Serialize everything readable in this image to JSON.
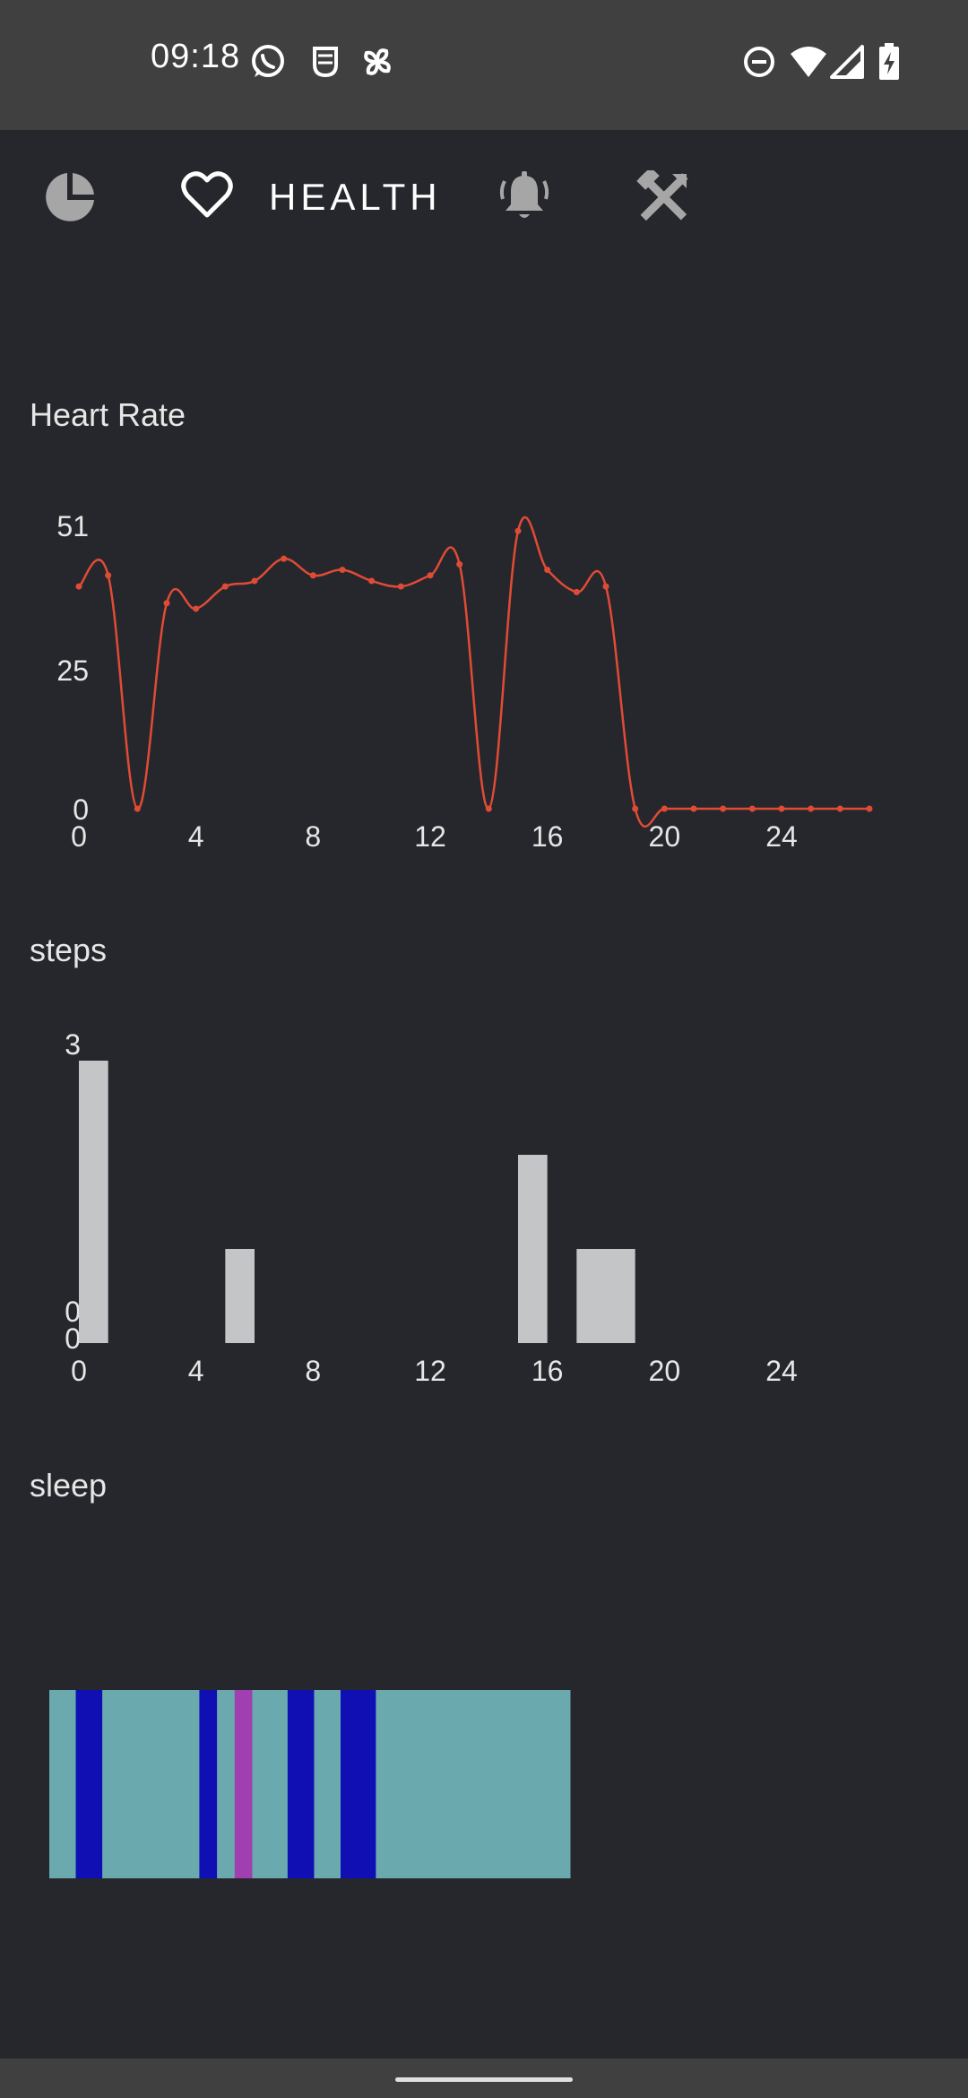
{
  "status_bar": {
    "time": "09:18",
    "notification_icons": [
      "whatsapp-icon",
      "mask-icon",
      "pinwheel-icon"
    ],
    "system_icons": [
      "dnd-icon",
      "wifi-icon",
      "signal-icon",
      "battery-charging-icon"
    ]
  },
  "nav": {
    "items": [
      {
        "name": "dashboard-tab",
        "icon": "pie-chart-icon"
      },
      {
        "name": "health-tab",
        "icon": "heart-icon",
        "label": "HEALTH",
        "active": true
      },
      {
        "name": "alerts-tab",
        "icon": "bell-icon"
      },
      {
        "name": "tools-tab",
        "icon": "tools-icon"
      }
    ]
  },
  "colors": {
    "background": "#26272c",
    "line": "#e04b36",
    "bar": "#c4c5c7",
    "light_sleep": "#6aa9ae",
    "deep_sleep": "#0f0fb3",
    "rem_sleep": "#a040b0"
  },
  "chart_data": [
    {
      "type": "line",
      "title": "Heart Rate",
      "x_ticks": [
        0,
        4,
        8,
        12,
        16,
        20,
        24
      ],
      "y_ticks": [
        0,
        25,
        51
      ],
      "xlim": [
        0,
        27
      ],
      "ylim": [
        0,
        51
      ],
      "grid": false,
      "series": [
        {
          "x": [
            0,
            1,
            2,
            3,
            4,
            5,
            6,
            7,
            8,
            9,
            10,
            11,
            12,
            13,
            14,
            15,
            16,
            17,
            18,
            19,
            20,
            21,
            22,
            23,
            24,
            25,
            26,
            27
          ],
          "y": [
            40,
            42,
            0,
            37,
            36,
            40,
            41,
            45,
            42,
            43,
            41,
            40,
            42,
            44,
            0,
            50,
            43,
            39,
            40,
            0,
            0,
            0,
            0,
            0,
            0,
            0,
            0,
            0
          ]
        }
      ]
    },
    {
      "type": "bar",
      "title": "steps",
      "x_ticks": [
        0,
        4,
        8,
        12,
        16,
        20,
        24
      ],
      "y_ticks": [
        "3",
        "0",
        "0"
      ],
      "xlim": [
        0,
        27
      ],
      "ylim": [
        0,
        3
      ],
      "grid": false,
      "bars": [
        {
          "x": 0,
          "value": 3
        },
        {
          "x": 5,
          "value": 1
        },
        {
          "x": 15,
          "value": 2
        },
        {
          "x": 17,
          "value": 1
        },
        {
          "x": 18,
          "value": 1
        }
      ]
    },
    {
      "type": "bar",
      "title": "sleep",
      "stacked_horizontal": true,
      "segments": [
        {
          "stage": "light",
          "duration": 3
        },
        {
          "stage": "deep",
          "duration": 3
        },
        {
          "stage": "light",
          "duration": 11
        },
        {
          "stage": "deep",
          "duration": 2
        },
        {
          "stage": "light",
          "duration": 2
        },
        {
          "stage": "rem",
          "duration": 2
        },
        {
          "stage": "light",
          "duration": 4
        },
        {
          "stage": "deep",
          "duration": 3
        },
        {
          "stage": "light",
          "duration": 3
        },
        {
          "stage": "deep",
          "duration": 4
        },
        {
          "stage": "light",
          "duration": 22
        }
      ]
    }
  ]
}
